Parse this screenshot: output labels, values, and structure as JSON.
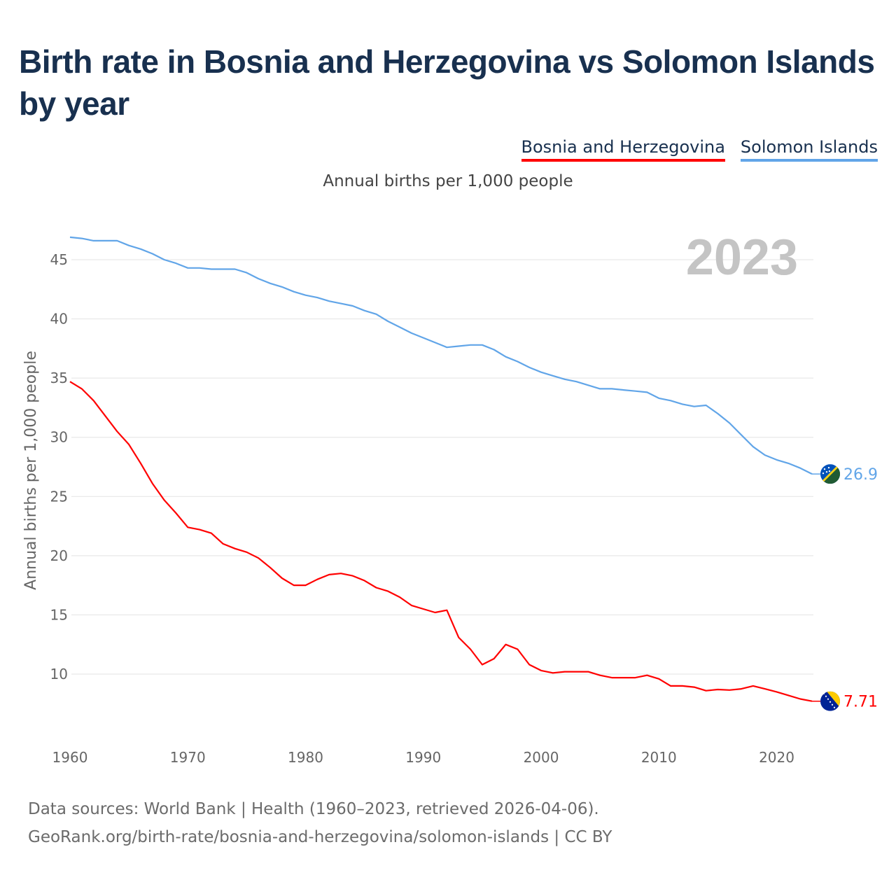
{
  "title": "Birth rate in Bosnia and Herzegovina vs Solomon Islands by year",
  "legend": [
    {
      "label": "Bosnia and Herzegovina",
      "color": "#ff0000"
    },
    {
      "label": "Solomon Islands",
      "color": "#61a5e8"
    }
  ],
  "subtitle": "Annual births per 1,000 people",
  "footer": {
    "line1": "Data sources: World Bank | Health (1960–2023, retrieved 2026-04-06).",
    "line2": "GeoRank.org/birth-rate/bosnia-and-herzegovina/solomon-islands | CC BY"
  },
  "chart_data": {
    "type": "line",
    "title": "Birth rate in Bosnia and Herzegovina vs Solomon Islands by year",
    "xlabel": "",
    "ylabel": "Annual births per 1,000 people",
    "year_label": "2023",
    "xlim": [
      1960,
      2023
    ],
    "ylim": [
      5,
      48
    ],
    "x_ticks": [
      1960,
      1970,
      1980,
      1990,
      2000,
      2010,
      2020
    ],
    "y_ticks": [
      10,
      15,
      20,
      25,
      30,
      35,
      40,
      45
    ],
    "grid": true,
    "x": [
      1960,
      1961,
      1962,
      1963,
      1964,
      1965,
      1966,
      1967,
      1968,
      1969,
      1970,
      1971,
      1972,
      1973,
      1974,
      1975,
      1976,
      1977,
      1978,
      1979,
      1980,
      1981,
      1982,
      1983,
      1984,
      1985,
      1986,
      1987,
      1988,
      1989,
      1990,
      1991,
      1992,
      1993,
      1994,
      1995,
      1996,
      1997,
      1998,
      1999,
      2000,
      2001,
      2002,
      2003,
      2004,
      2005,
      2006,
      2007,
      2008,
      2009,
      2010,
      2011,
      2012,
      2013,
      2014,
      2015,
      2016,
      2017,
      2018,
      2019,
      2020,
      2021,
      2022,
      2023
    ],
    "series": [
      {
        "name": "Bosnia and Herzegovina",
        "color": "#ff0000",
        "end_label": "7.71",
        "flag": "bosnia-flag",
        "values": [
          34.7,
          34.1,
          33.1,
          31.8,
          30.5,
          29.4,
          27.8,
          26.1,
          24.7,
          23.6,
          22.4,
          22.2,
          21.9,
          21.0,
          20.6,
          20.3,
          19.8,
          19.0,
          18.1,
          17.5,
          17.5,
          18.0,
          18.4,
          18.5,
          18.3,
          17.9,
          17.3,
          17.0,
          16.5,
          15.8,
          15.5,
          15.2,
          15.4,
          13.1,
          12.1,
          10.8,
          11.3,
          12.5,
          12.1,
          10.8,
          10.3,
          10.1,
          10.2,
          10.2,
          10.2,
          9.9,
          9.7,
          9.7,
          9.7,
          9.9,
          9.6,
          9.0,
          9.0,
          8.9,
          8.6,
          8.7,
          8.65,
          8.75,
          9.0,
          8.75,
          8.5,
          8.2,
          7.9,
          7.71
        ]
      },
      {
        "name": "Solomon Islands",
        "color": "#61a5e8",
        "end_label": "26.9",
        "flag": "solomon-islands-flag",
        "values": [
          46.9,
          46.8,
          46.6,
          46.6,
          46.6,
          46.2,
          45.9,
          45.5,
          45.0,
          44.7,
          44.3,
          44.3,
          44.2,
          44.2,
          44.2,
          43.9,
          43.4,
          43.0,
          42.7,
          42.3,
          42.0,
          41.8,
          41.5,
          41.3,
          41.1,
          40.7,
          40.4,
          39.8,
          39.3,
          38.8,
          38.4,
          38.0,
          37.6,
          37.7,
          37.8,
          37.8,
          37.4,
          36.8,
          36.4,
          35.9,
          35.5,
          35.2,
          34.9,
          34.7,
          34.4,
          34.1,
          34.1,
          34.0,
          33.9,
          33.8,
          33.3,
          33.1,
          32.8,
          32.6,
          32.7,
          32.0,
          31.2,
          30.2,
          29.2,
          28.5,
          28.1,
          27.8,
          27.4,
          26.9
        ]
      }
    ]
  }
}
